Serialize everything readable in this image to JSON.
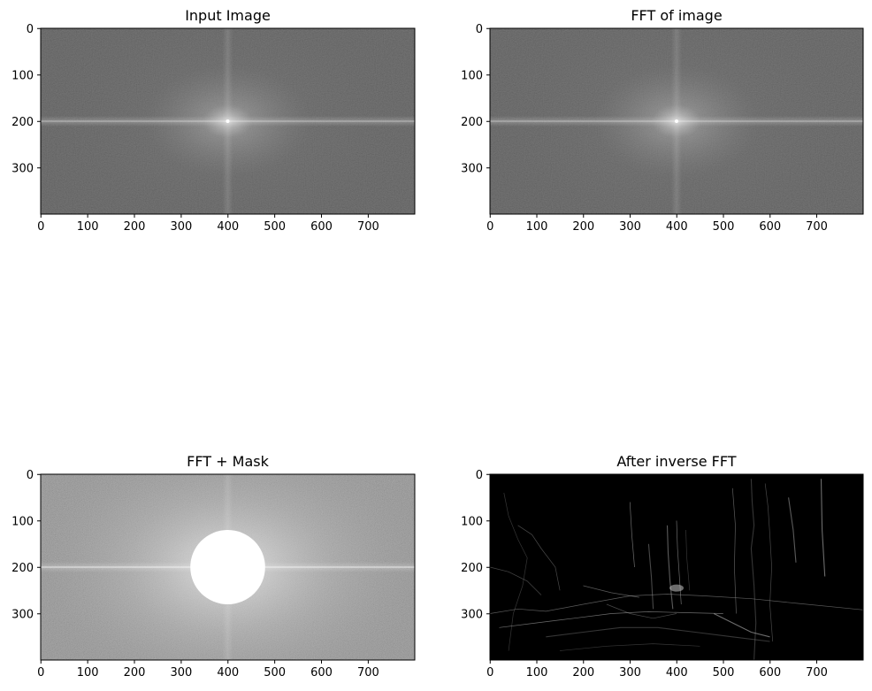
{
  "panels": [
    {
      "id": "input-image",
      "title": "Input Image",
      "render": "spectrum",
      "x_ticks": [
        "0",
        "100",
        "200",
        "300",
        "400",
        "500",
        "600",
        "700"
      ],
      "y_ticks": [
        "0",
        "100",
        "200",
        "300"
      ]
    },
    {
      "id": "fft-of-image",
      "title": "FFT of image",
      "render": "spectrum",
      "x_ticks": [
        "0",
        "100",
        "200",
        "300",
        "400",
        "500",
        "600",
        "700"
      ],
      "y_ticks": [
        "0",
        "100",
        "200",
        "300"
      ]
    },
    {
      "id": "fft-mask",
      "title": "FFT + Mask",
      "render": "spectrum-masked",
      "x_ticks": [
        "0",
        "100",
        "200",
        "300",
        "400",
        "500",
        "600",
        "700"
      ],
      "y_ticks": [
        "0",
        "100",
        "200",
        "300"
      ]
    },
    {
      "id": "inverse-fft",
      "title": "After inverse FFT",
      "render": "edges",
      "x_ticks": [
        "0",
        "100",
        "200",
        "300",
        "400",
        "500",
        "600",
        "700"
      ],
      "y_ticks": [
        "0",
        "100",
        "200",
        "300"
      ]
    }
  ],
  "image_width": 800,
  "image_height": 400,
  "colormap": "gray",
  "mask": {
    "shape": "circle",
    "center_x": 400,
    "center_y": 200,
    "radius": 80,
    "color": "#ffffff"
  }
}
